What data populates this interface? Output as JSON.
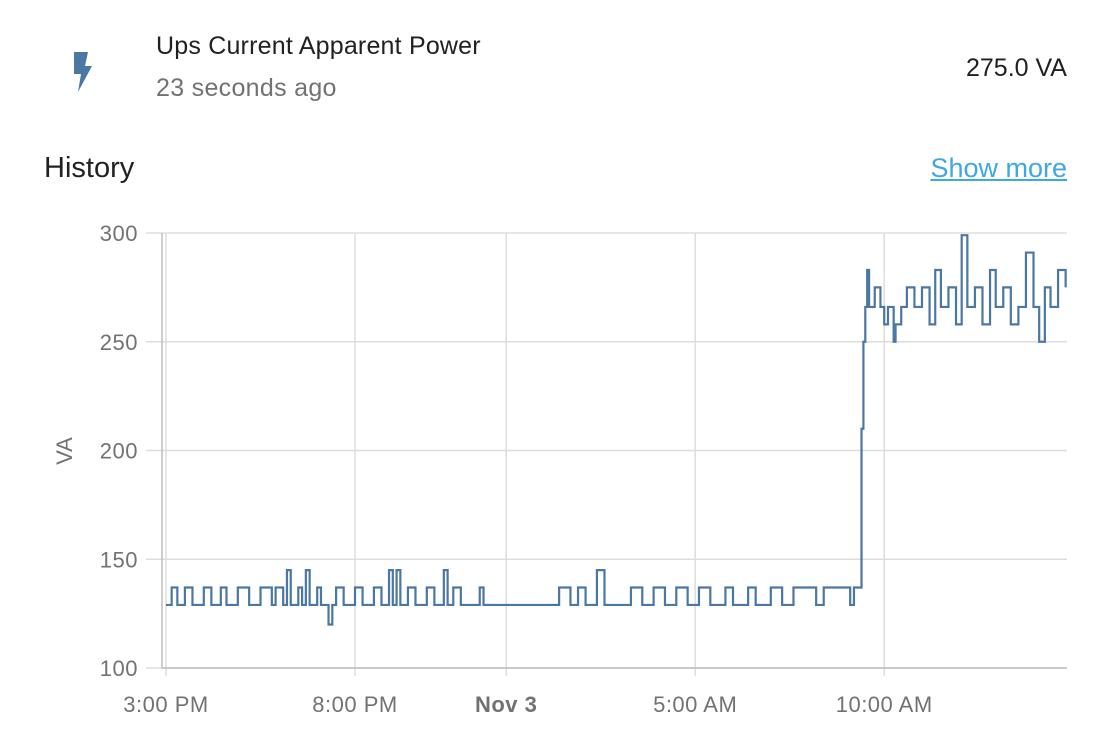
{
  "entity": {
    "icon": "flash-icon",
    "name": "Ups Current Apparent Power",
    "last_changed": "23 seconds ago",
    "state": "275.0 VA"
  },
  "history": {
    "title": "History",
    "show_more": "Show more"
  },
  "colors": {
    "line": "#4b77a4",
    "grid": "#dddddd",
    "link": "#3ea7e6"
  },
  "chart_data": {
    "type": "line",
    "ylabel": "VA",
    "ylim": [
      100,
      300
    ],
    "yticks": [
      100,
      150,
      200,
      250,
      300
    ],
    "xticks": [
      {
        "label": "3:00 PM",
        "hour": 0,
        "bold": false
      },
      {
        "label": "8:00 PM",
        "hour": 5,
        "bold": false
      },
      {
        "label": "Nov 3",
        "hour": 9,
        "bold": true
      },
      {
        "label": "5:00 AM",
        "hour": 14,
        "bold": false
      },
      {
        "label": "10:00 AM",
        "hour": 19,
        "bold": false
      }
    ],
    "xlim_hours": [
      -0.05,
      23.8
    ],
    "grid": true,
    "series": [
      {
        "description": "step line of VA readings",
        "points": [
          [
            0.0,
            129
          ],
          [
            0.15,
            137
          ],
          [
            0.3,
            129
          ],
          [
            0.5,
            137
          ],
          [
            0.7,
            129
          ],
          [
            1.0,
            137
          ],
          [
            1.2,
            129
          ],
          [
            1.45,
            137
          ],
          [
            1.6,
            129
          ],
          [
            1.9,
            137
          ],
          [
            2.2,
            129
          ],
          [
            2.5,
            137
          ],
          [
            2.8,
            129
          ],
          [
            2.9,
            137
          ],
          [
            3.1,
            129
          ],
          [
            3.2,
            145
          ],
          [
            3.3,
            129
          ],
          [
            3.5,
            137
          ],
          [
            3.6,
            129
          ],
          [
            3.7,
            145
          ],
          [
            3.8,
            129
          ],
          [
            4.0,
            137
          ],
          [
            4.1,
            129
          ],
          [
            4.3,
            120
          ],
          [
            4.4,
            129
          ],
          [
            4.5,
            137
          ],
          [
            4.7,
            129
          ],
          [
            5.0,
            137
          ],
          [
            5.2,
            129
          ],
          [
            5.5,
            137
          ],
          [
            5.7,
            129
          ],
          [
            5.9,
            145
          ],
          [
            6.0,
            129
          ],
          [
            6.1,
            145
          ],
          [
            6.2,
            129
          ],
          [
            6.4,
            137
          ],
          [
            6.6,
            129
          ],
          [
            6.9,
            137
          ],
          [
            7.1,
            129
          ],
          [
            7.35,
            145
          ],
          [
            7.45,
            129
          ],
          [
            7.6,
            137
          ],
          [
            7.8,
            129
          ],
          [
            8.3,
            137
          ],
          [
            8.4,
            129
          ],
          [
            9.2,
            129
          ],
          [
            10.2,
            129
          ],
          [
            10.4,
            137
          ],
          [
            10.7,
            129
          ],
          [
            10.9,
            137
          ],
          [
            11.1,
            129
          ],
          [
            11.4,
            145
          ],
          [
            11.6,
            129
          ],
          [
            12.0,
            129
          ],
          [
            12.3,
            137
          ],
          [
            12.6,
            129
          ],
          [
            12.9,
            137
          ],
          [
            13.2,
            129
          ],
          [
            13.5,
            137
          ],
          [
            13.8,
            129
          ],
          [
            14.1,
            137
          ],
          [
            14.4,
            129
          ],
          [
            14.8,
            137
          ],
          [
            15.0,
            129
          ],
          [
            15.4,
            137
          ],
          [
            15.6,
            129
          ],
          [
            16.0,
            137
          ],
          [
            16.3,
            129
          ],
          [
            16.6,
            137
          ],
          [
            17.2,
            129
          ],
          [
            17.4,
            137
          ],
          [
            18.1,
            129
          ],
          [
            18.2,
            137
          ],
          [
            18.35,
            137
          ],
          [
            18.4,
            210
          ],
          [
            18.45,
            250
          ],
          [
            18.5,
            266
          ],
          [
            18.55,
            283
          ],
          [
            18.6,
            266
          ],
          [
            18.75,
            275
          ],
          [
            18.9,
            266
          ],
          [
            19.0,
            258
          ],
          [
            19.1,
            266
          ],
          [
            19.25,
            250
          ],
          [
            19.3,
            258
          ],
          [
            19.45,
            266
          ],
          [
            19.6,
            275
          ],
          [
            19.8,
            266
          ],
          [
            20.0,
            275
          ],
          [
            20.2,
            258
          ],
          [
            20.35,
            283
          ],
          [
            20.5,
            266
          ],
          [
            20.7,
            275
          ],
          [
            20.9,
            258
          ],
          [
            21.05,
            299
          ],
          [
            21.2,
            266
          ],
          [
            21.4,
            275
          ],
          [
            21.6,
            258
          ],
          [
            21.8,
            283
          ],
          [
            21.95,
            266
          ],
          [
            22.15,
            275
          ],
          [
            22.35,
            258
          ],
          [
            22.55,
            266
          ],
          [
            22.75,
            291
          ],
          [
            22.95,
            266
          ],
          [
            23.1,
            250
          ],
          [
            23.25,
            275
          ],
          [
            23.4,
            266
          ],
          [
            23.6,
            283
          ],
          [
            23.8,
            275
          ]
        ]
      }
    ]
  }
}
